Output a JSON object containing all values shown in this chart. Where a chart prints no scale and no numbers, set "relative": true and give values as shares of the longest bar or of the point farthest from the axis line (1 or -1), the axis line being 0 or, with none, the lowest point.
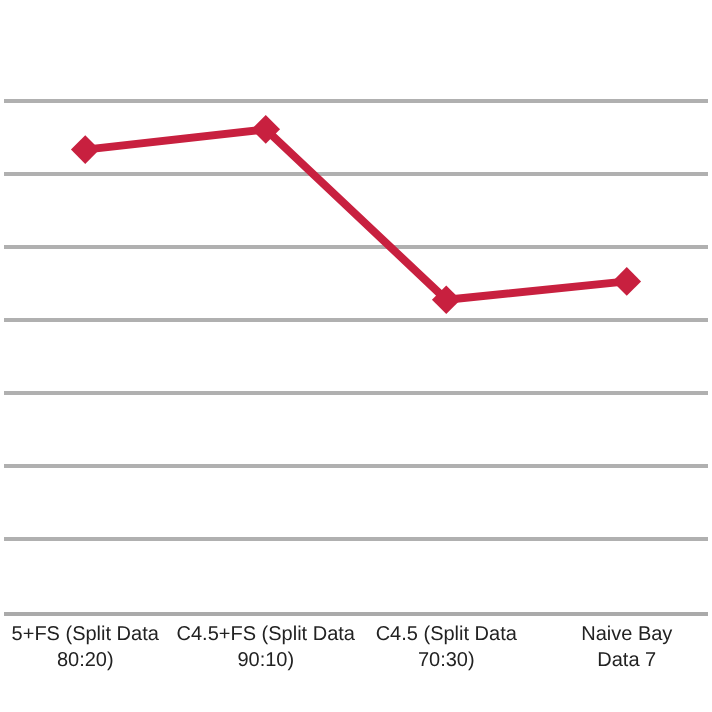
{
  "chart_data": {
    "type": "line",
    "relative": true,
    "categories": [
      "5+FS (Split Data\n80:20)",
      "C4.5+FS (Split Data\n90:10)",
      "C4.5 (Split Data\n70:30)",
      "Naive Bay\nData 7"
    ],
    "series": [
      {
        "color": "#c8203f",
        "values": [
          0.958,
          1,
          0.647,
          0.685
        ]
      }
    ],
    "marker": "diamond",
    "grid": "y"
  }
}
